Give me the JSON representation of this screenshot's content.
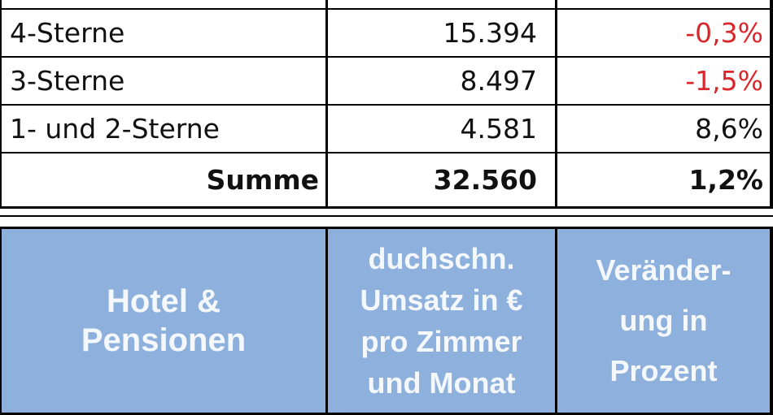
{
  "table": {
    "rows": [
      {
        "category": "4-Sterne",
        "revenue": "15.394",
        "change": "-0,3%",
        "change_negative": true
      },
      {
        "category": "3-Sterne",
        "revenue": "8.497",
        "change": "-1,5%",
        "change_negative": true
      },
      {
        "category": "1- und 2-Sterne",
        "revenue": "4.581",
        "change": "8,6%",
        "change_negative": false
      }
    ],
    "total": {
      "label": "Summe",
      "revenue": "32.560",
      "change": "1,2%"
    }
  },
  "header": {
    "col1": [
      "Hotel &",
      "Pensionen"
    ],
    "col2": [
      "duchschn.",
      "Umsatz in €",
      "pro Zimmer",
      "und Monat"
    ],
    "col3": [
      "Veränder-",
      "ung in",
      "Prozent"
    ]
  },
  "colors": {
    "header_fill": "#8db0dc",
    "header_text": "#f4f8fd",
    "negative_text": "#d9262b",
    "grid_lines": "#000000"
  }
}
